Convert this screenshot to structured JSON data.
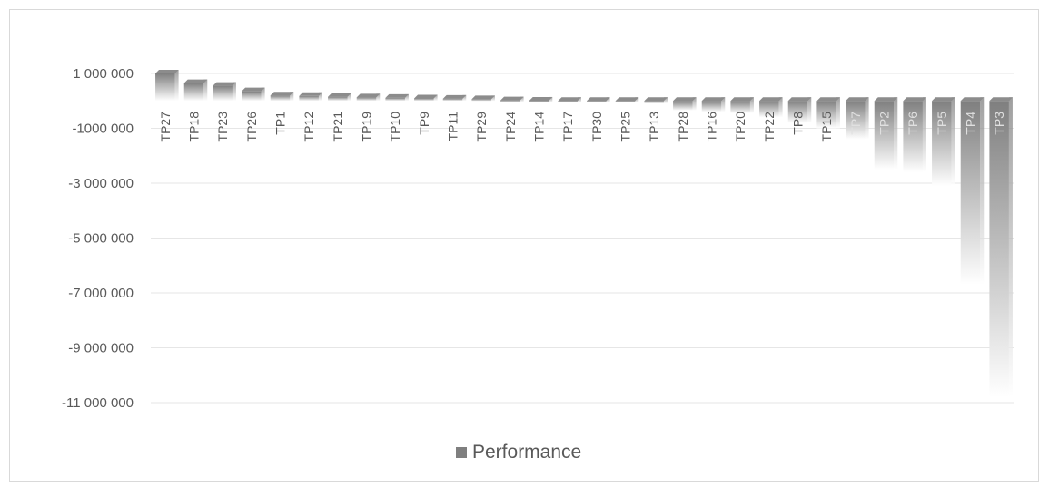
{
  "chart_data": {
    "type": "bar",
    "title": "",
    "xlabel": "",
    "ylabel": "",
    "ylim": [
      -11000000,
      1000000
    ],
    "yticks": [
      1000000,
      -1000000,
      -3000000,
      -5000000,
      -7000000,
      -9000000,
      -11000000
    ],
    "ytick_labels": [
      "1 000 000",
      "-1000 000",
      "-3 000 000",
      "-5 000 000",
      "-7 000 000",
      "-9 000 000",
      "-11 000 000"
    ],
    "grid": true,
    "legend_position": "bottom-center",
    "categories": [
      "TP27",
      "TP18",
      "TP23",
      "TP26",
      "TP1",
      "TP12",
      "TP21",
      "TP19",
      "TP10",
      "TP9",
      "TP11",
      "TP29",
      "TP24",
      "TP14",
      "TP17",
      "TP30",
      "TP25",
      "TP13",
      "TP28",
      "TP16",
      "TP20",
      "TP22",
      "TP8",
      "TP15",
      "TP7",
      "TP2",
      "TP6",
      "TP5",
      "TP4",
      "TP3"
    ],
    "series": [
      {
        "name": "Performance",
        "values": [
          1000000,
          650000,
          550000,
          350000,
          200000,
          180000,
          150000,
          130000,
          110000,
          90000,
          80000,
          60000,
          20000,
          10000,
          -20000,
          -40000,
          -60000,
          -100000,
          -350000,
          -400000,
          -450000,
          -600000,
          -800000,
          -1000000,
          -1400000,
          -2500000,
          -2600000,
          -3100000,
          -6700000,
          -10800000
        ]
      }
    ],
    "colors": {
      "bar_dark": "#7f7f7f",
      "bar_light": "#ffffff",
      "grid": "#e6e6e6",
      "text": "#595959"
    }
  }
}
